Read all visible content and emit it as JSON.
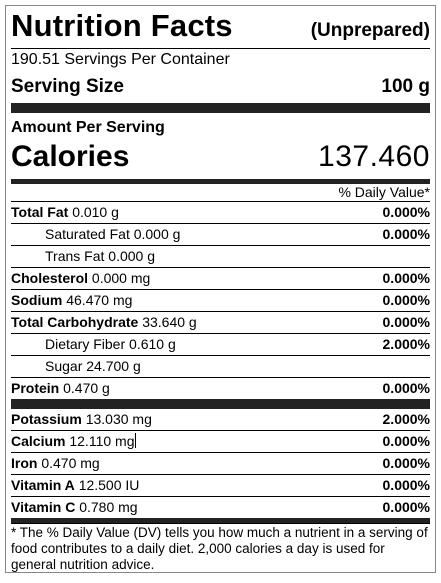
{
  "header": {
    "title": "Nutrition Facts",
    "subtitle": "(Unprepared)"
  },
  "servings_per_container": "190.51 Servings Per Container",
  "serving_size": {
    "label": "Serving Size",
    "value": "100 g"
  },
  "amount_per_serving": "Amount Per Serving",
  "calories": {
    "label": "Calories",
    "value": "137.460"
  },
  "dv_header": "% Daily Value*",
  "nutrients": [
    {
      "name": "Total Fat",
      "amount": "0.010 g",
      "dv": "0.000%"
    },
    {
      "name": "Saturated Fat",
      "amount": "0.000 g",
      "dv": "0.000%"
    },
    {
      "name": "Trans Fat",
      "amount": "0.000 g",
      "dv": ""
    },
    {
      "name": "Cholesterol",
      "amount": "0.000 mg",
      "dv": "0.000%"
    },
    {
      "name": "Sodium",
      "amount": "46.470 mg",
      "dv": "0.000%"
    },
    {
      "name": "Total Carbohydrate",
      "amount": "33.640 g",
      "dv": "0.000%"
    },
    {
      "name": "Dietary Fiber",
      "amount": "0.610 g",
      "dv": "2.000%"
    },
    {
      "name": "Sugar",
      "amount": "24.700 g",
      "dv": ""
    },
    {
      "name": "Protein",
      "amount": "0.470 g",
      "dv": "0.000%"
    }
  ],
  "minerals": [
    {
      "name": "Potassium",
      "amount": "13.030 mg",
      "dv": "2.000%"
    },
    {
      "name": "Calcium",
      "amount": "12.110 mg",
      "dv": "0.000%"
    },
    {
      "name": "Iron",
      "amount": "0.470 mg",
      "dv": "0.000%"
    },
    {
      "name": "Vitamin A",
      "amount": "12.500 IU",
      "dv": "0.000%"
    },
    {
      "name": "Vitamin C",
      "amount": "0.780 mg",
      "dv": "0.000%"
    }
  ],
  "footnote": "* The % Daily Value (DV) tells you how much a nutrient in a serving of food contributes to a daily diet. 2,000 calories a day is used for general nutrition advice."
}
